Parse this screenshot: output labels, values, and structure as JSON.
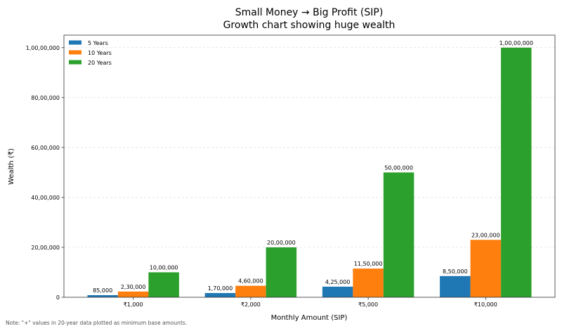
{
  "chart_data": {
    "type": "bar",
    "title": "Small Money → Big Profit (SIP)",
    "subtitle": "Growth chart showing huge wealth",
    "xlabel": "Monthly Amount (SIP)",
    "ylabel": "Wealth (₹)",
    "categories": [
      "₹1,000",
      "₹2,000",
      "₹5,000",
      "₹10,000"
    ],
    "series": [
      {
        "name": "5 Years",
        "color": "#1f77b4",
        "values": [
          85000,
          170000,
          425000,
          850000
        ],
        "labels": [
          "85,000",
          "1,70,000",
          "4,25,000",
          "8,50,000"
        ]
      },
      {
        "name": "10 Years",
        "color": "#ff7f0e",
        "values": [
          230000,
          460000,
          1150000,
          2300000
        ],
        "labels": [
          "2,30,000",
          "4,60,000",
          "11,50,000",
          "23,00,000"
        ]
      },
      {
        "name": "20 Years",
        "color": "#2ca02c",
        "values": [
          1000000,
          2000000,
          5000000,
          10000000
        ],
        "labels": [
          "10,00,000",
          "20,00,000",
          "50,00,000",
          "1,00,00,000"
        ]
      }
    ],
    "ylim": [
      0,
      10500000
    ],
    "yticks": [
      0,
      2000000,
      4000000,
      6000000,
      8000000,
      10000000
    ],
    "ytick_labels": [
      "0",
      "20,00,000",
      "40,00,000",
      "60,00,000",
      "80,00,000",
      "1,00,00,000"
    ],
    "grid": "y, dashed",
    "legend_placement": "top-left",
    "note": "Note: \"+\" values in 20-year data plotted as minimum base amounts."
  }
}
